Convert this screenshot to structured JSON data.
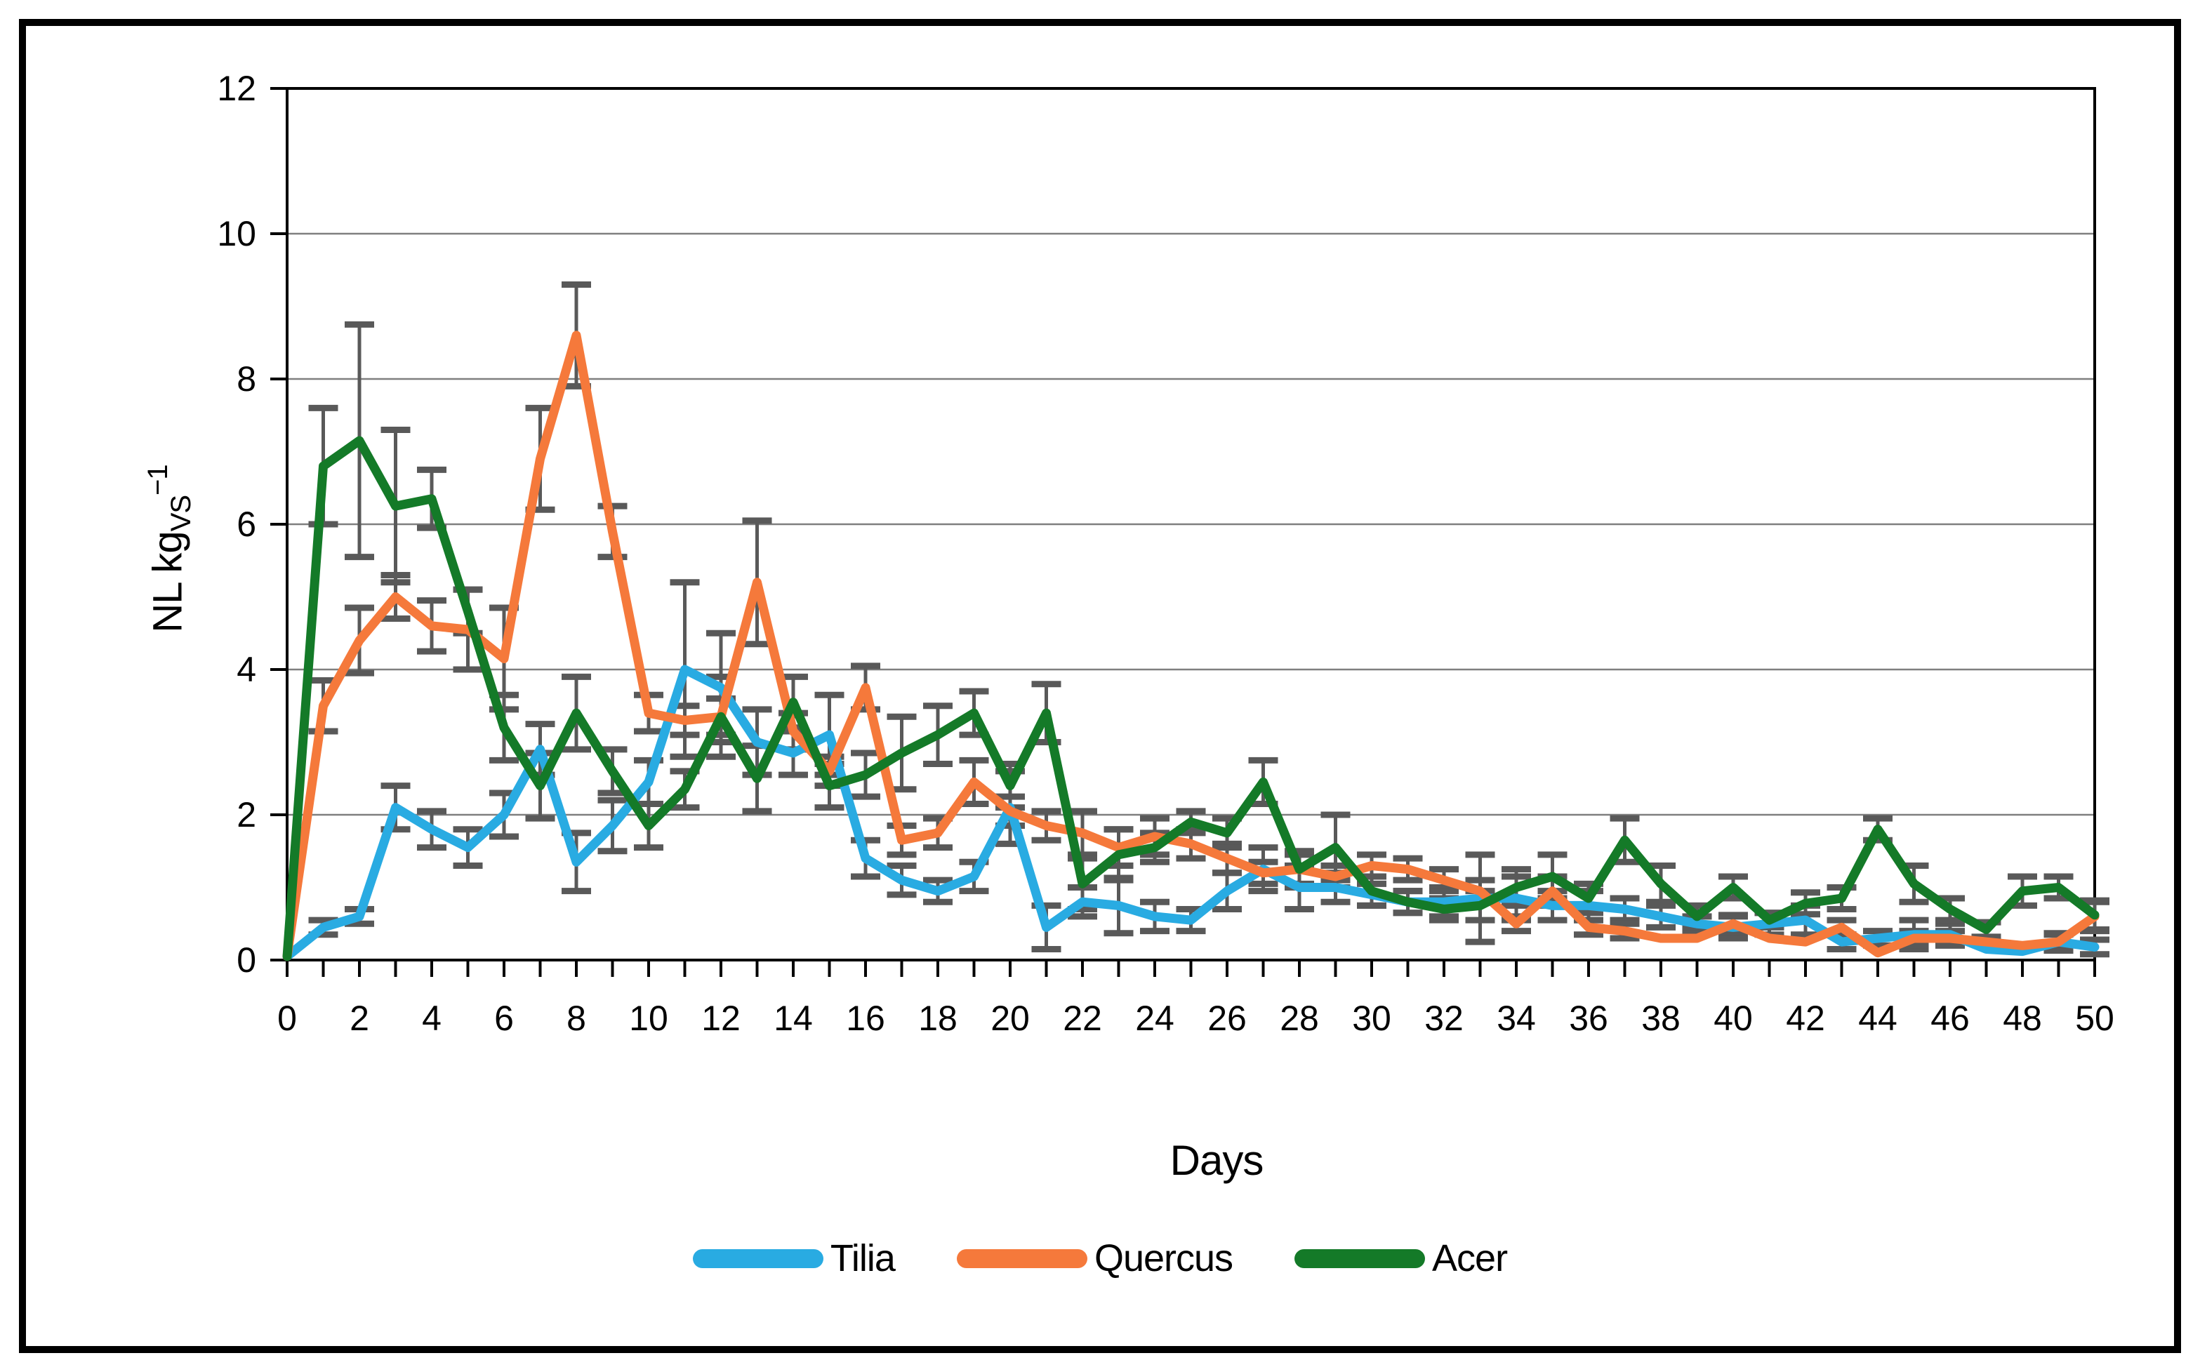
{
  "figure": {
    "background": "#ffffff",
    "frame_color": "#000000",
    "gridline_color": "#7f7f7f",
    "axis_color": "#000000",
    "error_bar_color": "#595959"
  },
  "y_axis_title": {
    "main": "NL kg",
    "sub": "VS",
    "sup": "−1"
  },
  "x_axis_title": "Days",
  "legend": {
    "items": [
      {
        "label": "Tilia",
        "color": "#29ABE2"
      },
      {
        "label": "Quercus",
        "color": "#F5793B"
      },
      {
        "label": "Acer",
        "color": "#147A28"
      }
    ]
  },
  "chart_data": {
    "type": "line",
    "title": "",
    "xlabel": "Days",
    "ylabel": "NL kg_VS^-1",
    "xlim": [
      0,
      50
    ],
    "ylim": [
      0,
      12
    ],
    "x_ticks": [
      0,
      2,
      4,
      6,
      8,
      10,
      12,
      14,
      16,
      18,
      20,
      22,
      24,
      26,
      28,
      30,
      32,
      34,
      36,
      38,
      40,
      42,
      44,
      46,
      48,
      50
    ],
    "y_ticks": [
      0,
      2,
      4,
      6,
      8,
      10,
      12
    ],
    "grid": true,
    "error_bars": true,
    "legend_position": "bottom",
    "x_start": 0,
    "x_step": 1,
    "series": [
      {
        "name": "Tilia",
        "color": "#29ABE2",
        "values": [
          0.05,
          0.45,
          0.6,
          2.1,
          1.8,
          1.55,
          2.0,
          2.9,
          1.35,
          1.85,
          2.45,
          4.0,
          3.75,
          3.0,
          2.85,
          3.1,
          1.4,
          1.1,
          0.95,
          1.15,
          2.1,
          0.45,
          0.8,
          0.75,
          0.6,
          0.55,
          0.95,
          1.25,
          1.0,
          1.0,
          0.9,
          0.8,
          0.8,
          0.85,
          0.85,
          0.75,
          0.75,
          0.7,
          0.6,
          0.5,
          0.45,
          0.5,
          0.55,
          0.25,
          0.3,
          0.35,
          0.35,
          0.15,
          0.12,
          0.25,
          0.18
        ],
        "errors": [
          0,
          0.1,
          0.1,
          0.3,
          0.25,
          0.25,
          0.3,
          0.35,
          0.4,
          0.35,
          0.3,
          1.2,
          0.75,
          0.45,
          0.3,
          0.55,
          0.25,
          0.2,
          0.15,
          0.2,
          0.5,
          0.3,
          0.2,
          0.38,
          0.2,
          0.15,
          0.25,
          0.3,
          0.3,
          0.2,
          0.15,
          0.15,
          0.2,
          0.6,
          0.3,
          0.2,
          0.2,
          0.15,
          0.15,
          0.1,
          0.15,
          0.15,
          0.2,
          0.1,
          0.1,
          0.2,
          0.15,
          0,
          0,
          0.12,
          0.1
        ]
      },
      {
        "name": "Quercus",
        "color": "#F5793B",
        "values": [
          0.05,
          3.5,
          4.4,
          5.0,
          4.6,
          4.55,
          4.15,
          6.9,
          8.6,
          5.9,
          3.4,
          3.3,
          3.35,
          5.2,
          3.15,
          2.6,
          3.75,
          1.65,
          1.75,
          2.45,
          2.05,
          1.85,
          1.75,
          1.55,
          1.7,
          1.6,
          1.4,
          1.2,
          1.25,
          1.15,
          1.3,
          1.25,
          1.1,
          0.95,
          0.5,
          0.95,
          0.45,
          0.4,
          0.3,
          0.3,
          0.5,
          0.3,
          0.25,
          0.45,
          0.1,
          0.3,
          0.3,
          0.25,
          0.2,
          0.25,
          0.6
        ],
        "errors": [
          0,
          0.35,
          0.45,
          0.3,
          0.35,
          0.55,
          0.7,
          0.7,
          0.7,
          0.35,
          0.25,
          0.2,
          0.25,
          0.85,
          0.25,
          0.2,
          0.3,
          0.2,
          0.2,
          0.3,
          0.2,
          0.2,
          0.3,
          0.25,
          0.25,
          0.2,
          0.2,
          0.15,
          0.2,
          0.15,
          0.15,
          0.15,
          0.15,
          0.15,
          0.1,
          0.2,
          0.1,
          0.1,
          0,
          0,
          0.12,
          0,
          0,
          0.1,
          0,
          0.1,
          0.1,
          0,
          0,
          0.1,
          0.2
        ]
      },
      {
        "name": "Acer",
        "color": "#147A28",
        "values": [
          0.05,
          6.8,
          7.15,
          6.25,
          6.35,
          4.8,
          3.2,
          2.4,
          3.4,
          2.6,
          1.85,
          2.35,
          3.35,
          2.5,
          3.55,
          2.4,
          2.55,
          2.85,
          3.1,
          3.4,
          2.4,
          3.4,
          1.05,
          1.45,
          1.55,
          1.9,
          1.75,
          2.45,
          1.25,
          1.55,
          0.95,
          0.8,
          0.7,
          0.75,
          1.0,
          1.15,
          0.85,
          1.65,
          1.05,
          0.6,
          1.0,
          0.55,
          0.78,
          0.85,
          1.8,
          1.05,
          0.7,
          0.42,
          0.95,
          1.0,
          0.62
        ],
        "errors": [
          0,
          0.8,
          1.6,
          1.05,
          0.4,
          0.3,
          0.45,
          0.45,
          0.5,
          0.3,
          0.3,
          0.25,
          0.55,
          0.45,
          0.35,
          0.3,
          0.3,
          0.5,
          0.4,
          0.3,
          0.3,
          0.4,
          0.35,
          0.35,
          0.2,
          0.15,
          0.2,
          0.3,
          0.25,
          0.45,
          0.2,
          0.15,
          0.15,
          0.2,
          0.25,
          0.3,
          0.2,
          0.3,
          0.25,
          0.15,
          0.15,
          0.1,
          0.15,
          0.15,
          0.15,
          0.25,
          0.15,
          0.1,
          0.2,
          0.15,
          0.2
        ]
      }
    ]
  }
}
